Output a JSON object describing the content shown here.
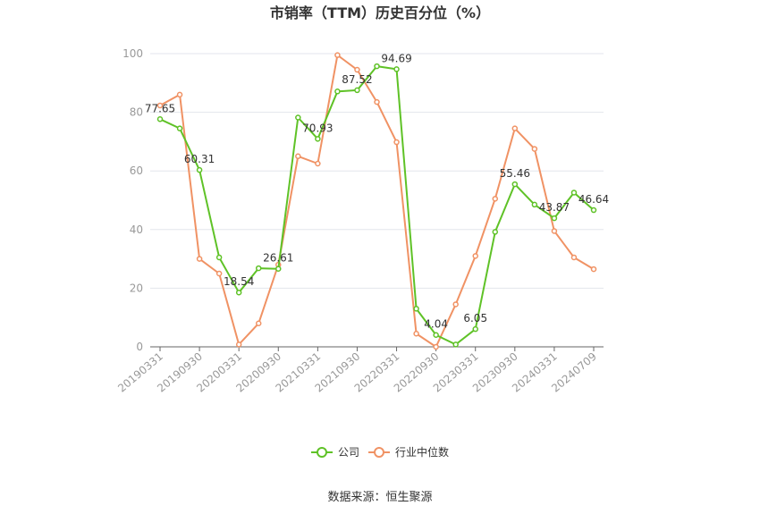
{
  "chart_data": {
    "type": "line",
    "title": "市销率（TTM）历史百分位（%）",
    "xlabel": "",
    "ylabel": "",
    "ylim": [
      0,
      100
    ],
    "yticks": [
      0,
      20,
      40,
      60,
      80,
      100
    ],
    "grid": true,
    "legend_position": "bottom",
    "x": [
      "20190331",
      "20190630",
      "20190930",
      "20191231",
      "20200331",
      "20200630",
      "20200930",
      "20201231",
      "20210331",
      "20210630",
      "20210930",
      "20211231",
      "20220331",
      "20220630",
      "20220930",
      "20221231",
      "20230331",
      "20230630",
      "20230930",
      "20231231",
      "20240331",
      "20240630",
      "20240709"
    ],
    "x_tick_labels": [
      "20190331",
      "20190930",
      "20200331",
      "20200930",
      "20210331",
      "20210930",
      "20220331",
      "20220930",
      "20230331",
      "20230930",
      "20240331",
      "20240709"
    ],
    "series": [
      {
        "name": "公司",
        "color": "#5fc227",
        "values": [
          77.65,
          74.5,
          60.31,
          30.5,
          18.54,
          26.8,
          26.61,
          78.2,
          70.93,
          87.1,
          87.52,
          95.7,
          94.69,
          13.0,
          4.04,
          0.8,
          6.05,
          39.2,
          55.46,
          48.5,
          43.87,
          52.6,
          46.64
        ]
      },
      {
        "name": "行业中位数",
        "color": "#f09264",
        "values": [
          82.3,
          86.0,
          30.0,
          25.0,
          0.8,
          8.0,
          28.0,
          65.0,
          62.5,
          99.5,
          94.5,
          83.5,
          69.8,
          4.5,
          0.0,
          14.5,
          31.0,
          50.5,
          74.5,
          67.5,
          39.5,
          30.5,
          26.5
        ]
      }
    ],
    "data_labels": [
      {
        "series": 0,
        "index": 0,
        "text": "77.65"
      },
      {
        "series": 0,
        "index": 2,
        "text": "60.31"
      },
      {
        "series": 0,
        "index": 4,
        "text": "18.54"
      },
      {
        "series": 0,
        "index": 6,
        "text": "26.61"
      },
      {
        "series": 0,
        "index": 8,
        "text": "70.93"
      },
      {
        "series": 0,
        "index": 10,
        "text": "87.52"
      },
      {
        "series": 0,
        "index": 12,
        "text": "94.69"
      },
      {
        "series": 0,
        "index": 14,
        "text": "4.04"
      },
      {
        "series": 0,
        "index": 16,
        "text": "6.05"
      },
      {
        "series": 0,
        "index": 18,
        "text": "55.46"
      },
      {
        "series": 0,
        "index": 20,
        "text": "43.87"
      },
      {
        "series": 0,
        "index": 22,
        "text": "46.64"
      }
    ]
  },
  "source_text": "数据来源：恒生聚源"
}
